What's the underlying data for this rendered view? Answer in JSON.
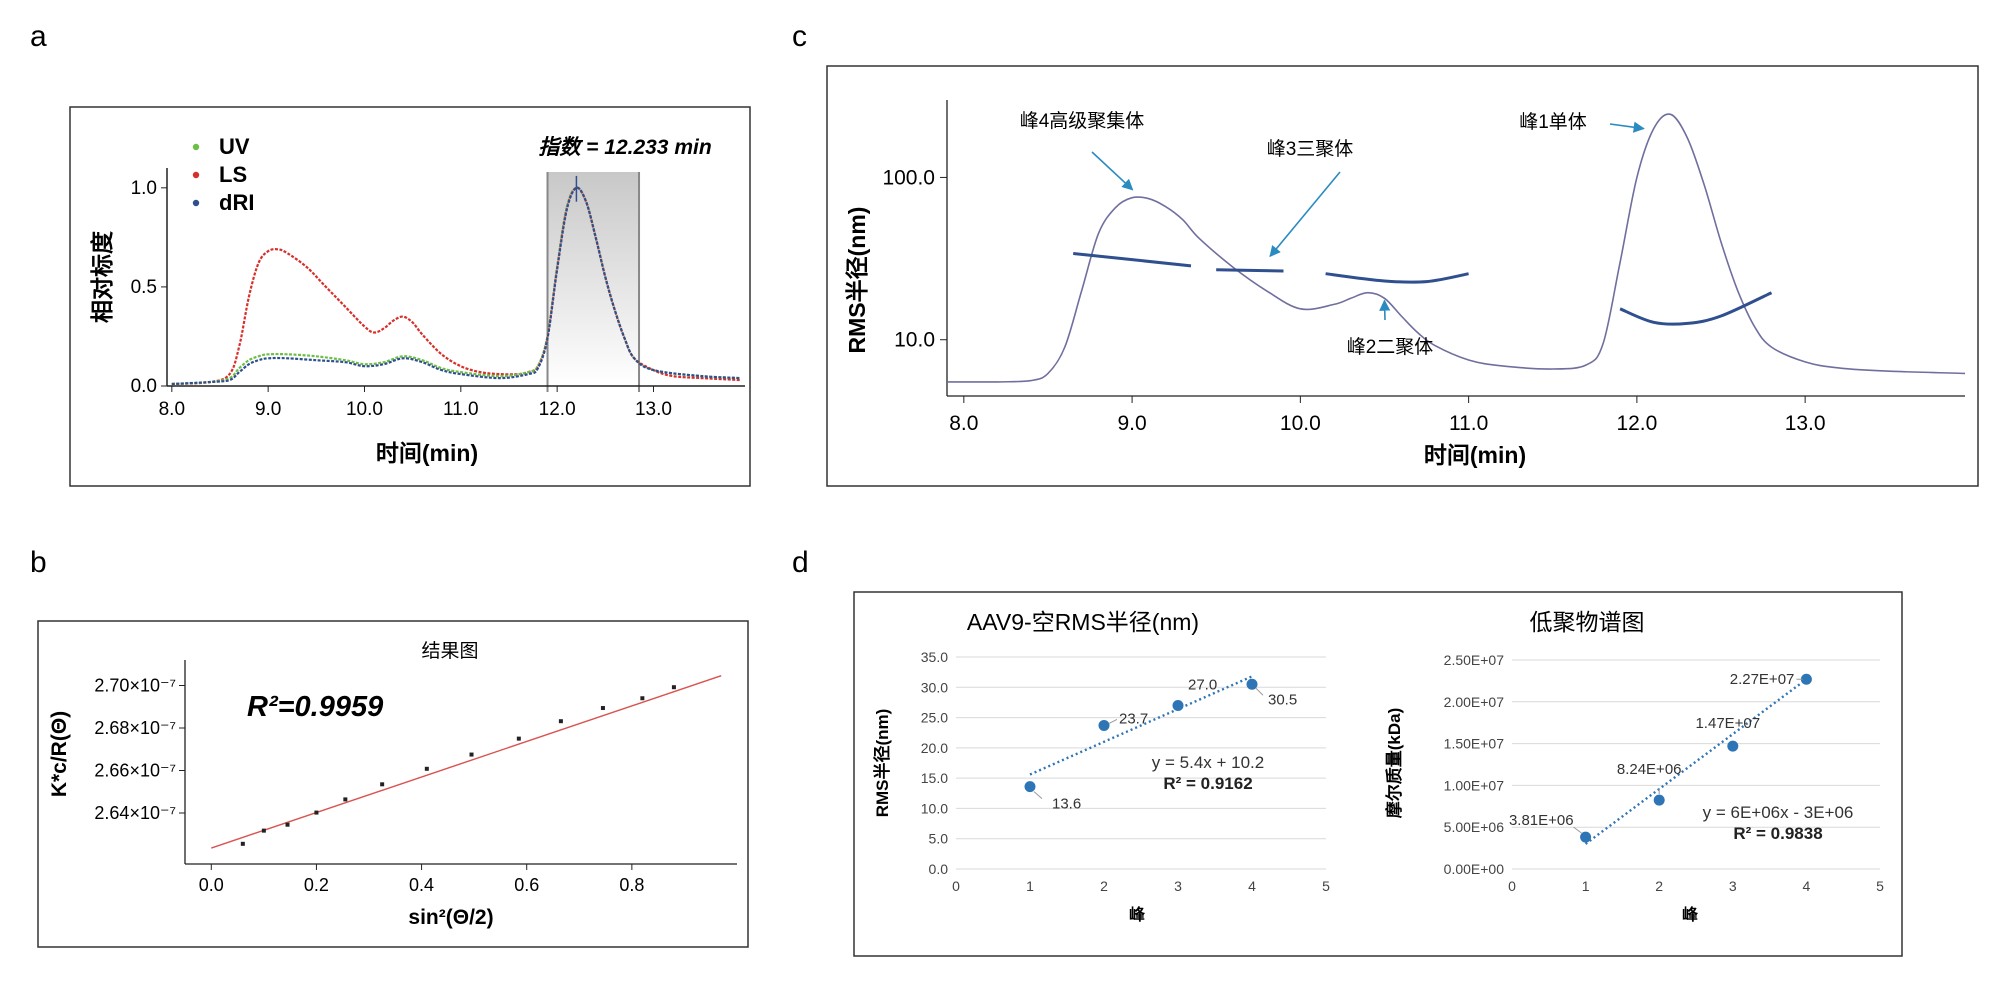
{
  "panels": {
    "a": {
      "letter": "a",
      "chart_data": {
        "type": "line",
        "title": "",
        "xlabel": "时间(min)",
        "ylabel": "相对标度",
        "xlim": [
          7.95,
          13.95
        ],
        "ylim": [
          0,
          1.1
        ],
        "xticks": [
          8.0,
          9.0,
          10.0,
          11.0,
          12.0,
          13.0
        ],
        "xtick_labels": [
          "8.0",
          "9.0",
          "10.0",
          "11.0",
          "12.0",
          "13.0"
        ],
        "yticks": [
          0,
          0.5,
          1.0
        ],
        "ytick_labels": [
          "0.0",
          "0.5",
          "1.0"
        ],
        "legend": [
          "UV",
          "LS",
          "dRI"
        ],
        "legend_colors": [
          "#6bbf45",
          "#d7302b",
          "#2f4f8f"
        ],
        "annotation": "指数 = 12.233 min",
        "highlight_range": [
          11.9,
          12.85
        ],
        "series": [
          {
            "name": "LS",
            "color": "#d7302b",
            "x": [
              8.0,
              8.4,
              8.6,
              8.7,
              8.8,
              8.9,
              9.0,
              9.1,
              9.2,
              9.4,
              9.6,
              9.8,
              10.0,
              10.1,
              10.2,
              10.3,
              10.4,
              10.5,
              10.6,
              10.8,
              11.0,
              11.2,
              11.4,
              11.6,
              11.7,
              11.8,
              11.9,
              12.0,
              12.1,
              12.2,
              12.3,
              12.4,
              12.5,
              12.6,
              12.7,
              12.8,
              13.0,
              13.2,
              13.5,
              13.9
            ],
            "y": [
              0.01,
              0.02,
              0.06,
              0.2,
              0.45,
              0.62,
              0.68,
              0.69,
              0.67,
              0.6,
              0.5,
              0.4,
              0.3,
              0.27,
              0.29,
              0.33,
              0.35,
              0.32,
              0.26,
              0.16,
              0.1,
              0.07,
              0.06,
              0.06,
              0.07,
              0.1,
              0.25,
              0.6,
              0.9,
              1.0,
              0.93,
              0.75,
              0.55,
              0.38,
              0.24,
              0.14,
              0.08,
              0.05,
              0.04,
              0.03
            ]
          },
          {
            "name": "UV",
            "color": "#6bbf45",
            "x": [
              8.0,
              8.4,
              8.6,
              8.7,
              8.8,
              8.9,
              9.0,
              9.2,
              9.5,
              9.8,
              10.0,
              10.2,
              10.4,
              10.6,
              10.8,
              11.0,
              11.4,
              11.7,
              11.8,
              11.9,
              12.0,
              12.1,
              12.2,
              12.3,
              12.4,
              12.5,
              12.6,
              12.7,
              12.8,
              13.0,
              13.5,
              13.9
            ],
            "y": [
              0.01,
              0.02,
              0.04,
              0.09,
              0.13,
              0.15,
              0.16,
              0.16,
              0.15,
              0.13,
              0.11,
              0.12,
              0.15,
              0.13,
              0.09,
              0.07,
              0.05,
              0.07,
              0.1,
              0.25,
              0.6,
              0.9,
              1.0,
              0.93,
              0.75,
              0.55,
              0.38,
              0.24,
              0.14,
              0.08,
              0.05,
              0.04
            ]
          },
          {
            "name": "dRI",
            "color": "#2f4f8f",
            "x": [
              8.0,
              8.4,
              8.6,
              8.7,
              8.8,
              8.9,
              9.0,
              9.2,
              9.5,
              9.8,
              10.0,
              10.2,
              10.4,
              10.6,
              10.8,
              11.0,
              11.4,
              11.7,
              11.8,
              11.9,
              12.0,
              12.1,
              12.2,
              12.3,
              12.4,
              12.5,
              12.6,
              12.7,
              12.8,
              13.0,
              13.5,
              13.9
            ],
            "y": [
              0.01,
              0.02,
              0.03,
              0.07,
              0.11,
              0.13,
              0.14,
              0.14,
              0.13,
              0.12,
              0.1,
              0.11,
              0.14,
              0.12,
              0.08,
              0.06,
              0.04,
              0.06,
              0.09,
              0.24,
              0.59,
              0.89,
              1.0,
              0.93,
              0.75,
              0.55,
              0.38,
              0.24,
              0.14,
              0.08,
              0.05,
              0.04
            ]
          }
        ]
      }
    },
    "b": {
      "letter": "b",
      "chart_data": {
        "type": "scatter",
        "title": "结果图",
        "xlabel": "sin²(Θ/2)",
        "ylabel": "K*c/R(Θ)",
        "annotation": "R²=0.9959",
        "xlim": [
          -0.05,
          1.0
        ],
        "ylim": [
          2.616,
          2.712
        ],
        "xticks": [
          0.0,
          0.2,
          0.4,
          0.6,
          0.8
        ],
        "xtick_labels": [
          "0.0",
          "0.2",
          "0.4",
          "0.6",
          "0.8"
        ],
        "yticks": [
          2.64,
          2.66,
          2.68,
          2.7
        ],
        "ytick_labels": [
          "2.64×10⁻⁷",
          "2.66×10⁻⁷",
          "2.68×10⁻⁷",
          "2.70×10⁻⁷"
        ],
        "points_x": [
          0.06,
          0.1,
          0.145,
          0.2,
          0.255,
          0.325,
          0.41,
          0.495,
          0.585,
          0.665,
          0.745,
          0.82,
          0.88
        ],
        "points_y": [
          2.6255,
          2.6317,
          2.6345,
          2.6402,
          2.6464,
          2.6535,
          2.6608,
          2.6675,
          2.675,
          2.6832,
          2.6894,
          2.694,
          2.6992
        ],
        "fit_line": {
          "x": [
            0.0,
            0.97
          ],
          "y": [
            2.6235,
            2.7046
          ],
          "color": "#d9534f"
        }
      }
    },
    "c": {
      "letter": "c",
      "chart_data": {
        "type": "line",
        "title": "",
        "xlabel": "时间(min)",
        "ylabel": "RMS半径(nm)",
        "yscale": "log",
        "xlim": [
          7.9,
          13.95
        ],
        "ylim": [
          4.5,
          300
        ],
        "xticks": [
          8.0,
          9.0,
          10.0,
          11.0,
          12.0,
          13.0
        ],
        "xtick_labels": [
          "8.0",
          "9.0",
          "10.0",
          "11.0",
          "12.0",
          "13.0"
        ],
        "yticks": [
          10.0,
          100.0
        ],
        "ytick_labels": [
          "10.0",
          "100.0"
        ],
        "series": [
          {
            "name": "trace",
            "color": "#6f6f9f",
            "x": [
              7.9,
              8.2,
              8.4,
              8.5,
              8.6,
              8.7,
              8.8,
              8.9,
              9.0,
              9.1,
              9.2,
              9.3,
              9.4,
              9.6,
              9.8,
              10.0,
              10.2,
              10.3,
              10.4,
              10.5,
              10.6,
              10.7,
              10.8,
              11.0,
              11.2,
              11.5,
              11.7,
              11.8,
              11.9,
              12.0,
              12.1,
              12.2,
              12.3,
              12.4,
              12.5,
              12.6,
              12.7,
              12.8,
              13.0,
              13.2,
              13.5,
              13.95
            ],
            "y": [
              5.5,
              5.5,
              5.6,
              6.2,
              9.0,
              20,
              45,
              65,
              75,
              74,
              66,
              55,
              42,
              28,
              20,
              15.5,
              16.5,
              18,
              19.5,
              18,
              14,
              11,
              9.2,
              7.5,
              6.9,
              6.6,
              7.0,
              9.5,
              30,
              100,
              200,
              245,
              175,
              90,
              40,
              20,
              12,
              9.0,
              7.3,
              6.7,
              6.4,
              6.2
            ]
          },
          {
            "name": "rms-seg-1",
            "color": "#2f4f8f",
            "x": [
              8.65,
              9.35
            ],
            "y": [
              34,
              28.5
            ]
          },
          {
            "name": "rms-seg-2",
            "color": "#2f4f8f",
            "x": [
              9.5,
              9.9
            ],
            "y": [
              27,
              26.5
            ]
          },
          {
            "name": "rms-seg-3",
            "color": "#2f4f8f",
            "x": [
              10.15,
              10.5,
              10.75,
              11.0
            ],
            "y": [
              25.5,
              23,
              22.8,
              25.5
            ]
          },
          {
            "name": "rms-seg-4",
            "color": "#2f4f8f",
            "x": [
              11.9,
              12.1,
              12.3,
              12.5,
              12.8
            ],
            "y": [
              15.5,
              12.8,
              12.6,
              14,
              19.5
            ]
          }
        ],
        "annotations": [
          {
            "text": "峰4高级聚集体",
            "target_x": 9.05,
            "target_y": 75
          },
          {
            "text": "峰3三聚体",
            "target_x": 9.8,
            "target_y": 30
          },
          {
            "text": "峰2二聚体",
            "target_x": 10.5,
            "target_y": 19.5
          },
          {
            "text": "峰1单体",
            "target_x": 12.1,
            "target_y": 200
          }
        ]
      }
    },
    "d": {
      "letter": "d",
      "chart_data": [
        {
          "type": "scatter",
          "title": "AAV9-空RMS半径(nm)",
          "xlabel": "峰",
          "ylabel": "RMS半径(nm)",
          "xlim": [
            0,
            5
          ],
          "ylim": [
            0,
            35
          ],
          "xticks": [
            0,
            1,
            2,
            3,
            4,
            5
          ],
          "xtick_labels": [
            "0",
            "1",
            "2",
            "3",
            "4",
            "5"
          ],
          "yticks": [
            0,
            5,
            10,
            15,
            20,
            25,
            30,
            35
          ],
          "ytick_labels": [
            "0.0",
            "5.0",
            "10.0",
            "15.0",
            "20.0",
            "25.0",
            "30.0",
            "35.0"
          ],
          "x": [
            1,
            2,
            3,
            4
          ],
          "y": [
            13.6,
            23.7,
            27.0,
            30.5
          ],
          "point_labels": [
            "13.6",
            "23.7",
            "27.0",
            "30.5"
          ],
          "trendline": {
            "slope": 5.4,
            "intercept": 10.2
          },
          "equation": "y = 5.4x + 10.2",
          "r2_label": "R² = 0.9162"
        },
        {
          "type": "scatter",
          "title": "低聚物谱图",
          "xlabel": "峰",
          "ylabel": "摩尔质量(kDa)",
          "xlim": [
            0,
            5
          ],
          "ylim": [
            0,
            25000000
          ],
          "xticks": [
            0,
            1,
            2,
            3,
            4,
            5
          ],
          "xtick_labels": [
            "0",
            "1",
            "2",
            "3",
            "4",
            "5"
          ],
          "yticks": [
            0,
            5000000,
            10000000,
            15000000,
            20000000,
            25000000
          ],
          "ytick_labels": [
            "0.00E+00",
            "5.00E+06",
            "1.00E+07",
            "1.50E+07",
            "2.00E+07",
            "2.50E+07"
          ],
          "x": [
            1,
            2,
            3,
            4
          ],
          "y": [
            3810000,
            8240000,
            14700000,
            22700000
          ],
          "point_labels": [
            "3.81E+06",
            "8.24E+06",
            "1.47E+07",
            "2.27E+07"
          ],
          "trendline": {
            "x": [
              1,
              4
            ],
            "y": [
              3000000,
              22700000
            ]
          },
          "equation": "y = 6E+06x - 3E+06",
          "r2_label": "R² = 0.9838"
        }
      ]
    }
  }
}
